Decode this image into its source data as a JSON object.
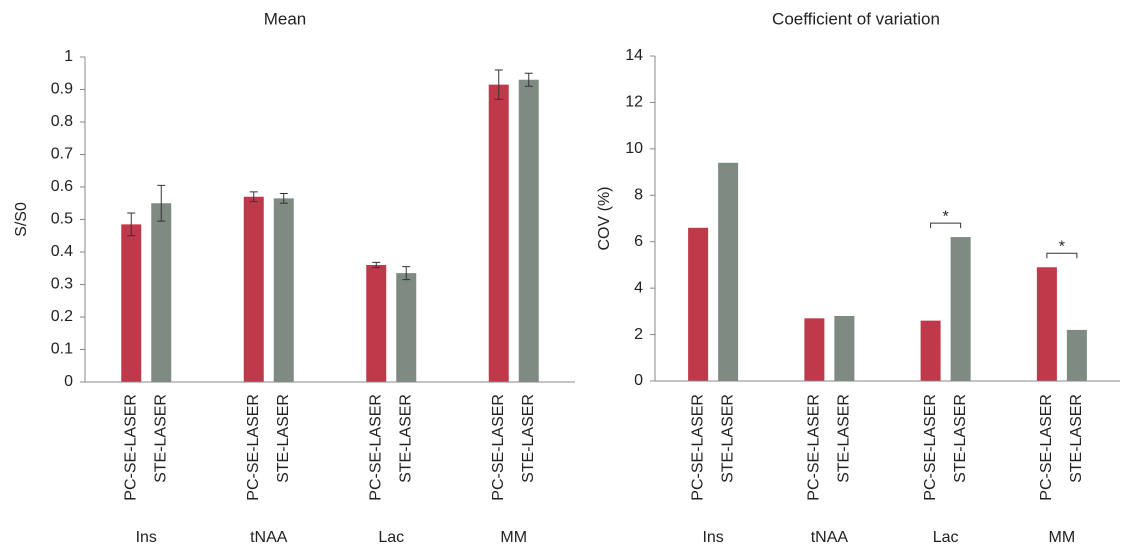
{
  "chart_data": [
    {
      "type": "bar",
      "title": "Mean",
      "y_label": "S/S0",
      "categories": [
        "Ins",
        "tNAA",
        "Lac",
        "MM"
      ],
      "series": [
        {
          "name": "PC-SE-LASER",
          "color": "#c0394b",
          "values": [
            0.485,
            0.57,
            0.36,
            0.915
          ],
          "errors": [
            0.035,
            0.015,
            0.008,
            0.045
          ]
        },
        {
          "name": "STE-LASER",
          "color": "#7f8a82",
          "values": [
            0.55,
            0.565,
            0.335,
            0.93
          ],
          "errors": [
            0.055,
            0.015,
            0.02,
            0.02
          ]
        }
      ],
      "ylim": [
        0,
        1
      ],
      "yticks": [
        0,
        0.1,
        0.2,
        0.3,
        0.4,
        0.5,
        0.6,
        0.7,
        0.8,
        0.9,
        1
      ],
      "grid": false
    },
    {
      "type": "bar",
      "title": "Coefficient of variation",
      "y_label": "COV (%)",
      "categories": [
        "Ins",
        "tNAA",
        "Lac",
        "MM"
      ],
      "series": [
        {
          "name": "PC-SE-LASER",
          "color": "#c0394b",
          "values": [
            6.6,
            2.7,
            2.6,
            4.9
          ]
        },
        {
          "name": "STE-LASER",
          "color": "#7f8a82",
          "values": [
            9.4,
            2.8,
            6.2,
            2.2
          ]
        }
      ],
      "annotations": [
        {
          "text": "*",
          "category": "Lac"
        },
        {
          "text": "*",
          "category": "MM"
        }
      ],
      "ylim": [
        0,
        14
      ],
      "yticks": [
        0,
        2,
        4,
        6,
        8,
        10,
        12,
        14
      ],
      "grid": false
    }
  ]
}
